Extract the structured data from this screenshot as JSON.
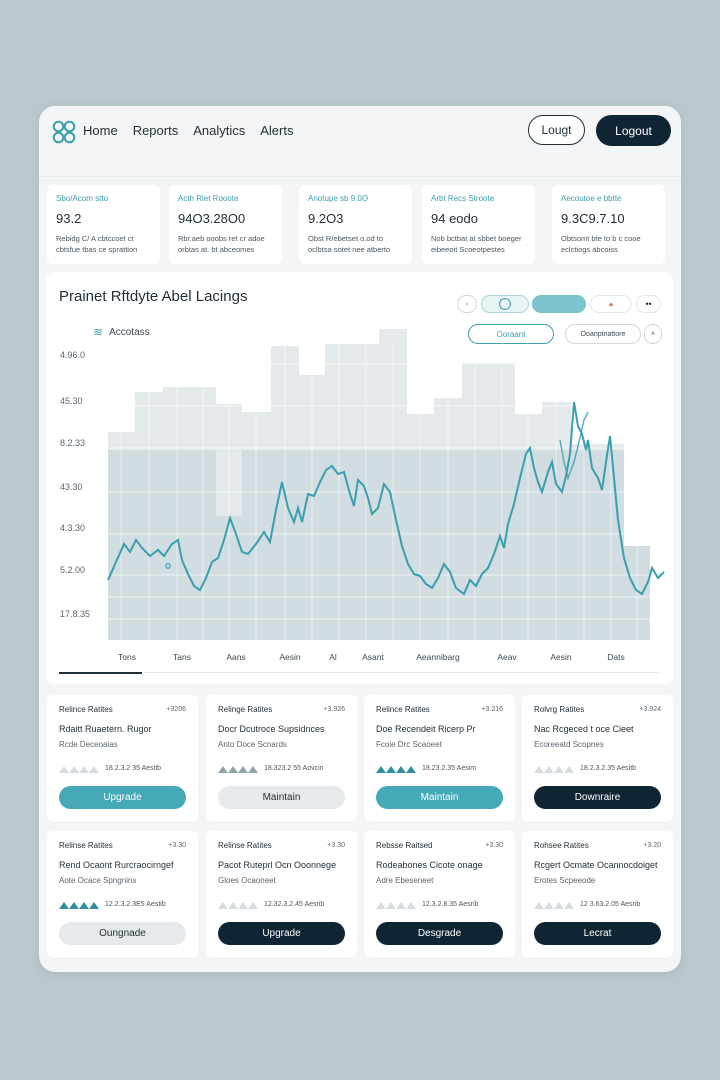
{
  "nav": {
    "items": [
      "Home",
      "Reports",
      "Analytics",
      "Alerts"
    ],
    "logout_outline": "Lougt",
    "logout_primary": "Logout"
  },
  "stats": [
    {
      "label": "Sbo/Acom stto",
      "value": "93.2",
      "desc_line1": "Rebidg C/ A cbtccoet ct",
      "desc_line2": "cbtsfue tbas ce sprattion"
    },
    {
      "label": "Acth Rlet Rooote",
      "value": "94O3.28O0",
      "desc_line1": "Rbr.aeb ooobs ret cr adoe",
      "desc_line2": "orbtas at. bt abceomes"
    },
    {
      "label": "Anotupe sb 9.0O",
      "value": "9.2O3",
      "desc_line1": "Obst R/ebetset o.od to ",
      "desc_line2": "oclbtsa sotet nee atberto"
    },
    {
      "label": "Arbt Recs Stroote",
      "value": "94 eodo",
      "desc_line1": "Nob bctbat at sbbet boeger",
      "desc_line2": "eibeeoit Scoeotpestes"
    },
    {
      "label": "Aecoutoe e bbtte",
      "value": "9.3C9.7.10",
      "desc_line1": "Obtsomt bte to b c cooe",
      "desc_line2": "eclctiogs abcoiss"
    }
  ],
  "chart": {
    "title": "Prainet Rftdyte Abel Lacings",
    "legend_label": "Accotass",
    "controls": {
      "search_placeholder": "Ooraant",
      "dropdown_label": "Ooanptnattore"
    },
    "y_ticks": [
      "4.96.0",
      "45.30",
      "8.2.33",
      "43.30",
      "4.3.30",
      "5.2.00",
      "17.8.35"
    ],
    "x_ticks": [
      "Tons",
      "Tans",
      "Aans",
      "Aesin",
      "Al",
      "Asant",
      "Aeannibarg",
      "Aeav",
      "Aesin",
      "Dats"
    ]
  },
  "cards": [
    {
      "title": "Relince Ratites",
      "code": "+3206",
      "name": "Rdaitt Ruaetern. Rugor",
      "sub": "Rcde Deceoaias",
      "meta": "18.2.3.2 35 Aesitb",
      "button": "Upgrade",
      "style": "teal"
    },
    {
      "title": "Relinge Ratites",
      "code": "+3.926",
      "name": "Docr Dcutroce Supsidnces",
      "sub": "Anto Doce Scnards",
      "meta": "18.323.2 55 Aovcin",
      "button": "Maintain",
      "style": "light"
    },
    {
      "title": "Relince Ratites",
      "code": "+3.216",
      "name": "Doe Recendeit Ricerp Pr",
      "sub": "Fcoie Drc Scaoeet",
      "meta": "18.23.2.35 Aesim",
      "button": "Maintain",
      "style": "teal"
    },
    {
      "title": "Rolvrg Ratites",
      "code": "+3.924",
      "name": "Nac Rcgeced t oce Cieet",
      "sub": "Ecoreeatd Scopnes",
      "meta": "18.2.3.2.35 Aesitb",
      "button": "Downraire",
      "style": "dark"
    },
    {
      "title": "Relinse Ratites",
      "code": "+3.30",
      "name": "Rend Ocaont Rurcraocirngef",
      "sub": "Aote Ocace Spngnins",
      "meta": "12.2.3.2.3E5 Aestib",
      "button": "Oungnade",
      "style": "light"
    },
    {
      "title": "Relinse Ratites",
      "code": "+3.30",
      "name": "Pacot Ruteprl Ocn Ooonnege",
      "sub": "Gloes Ocaoneet",
      "meta": "12.32.3.2.45 Aesrib",
      "button": "Upgrade",
      "style": "dark"
    },
    {
      "title": "Rebsse Raitsed",
      "code": "+3.30",
      "name": "Rodeabones Cicote onage",
      "sub": "Adre Ebeseneet",
      "meta": "12.3.2.8.35 Aesrib",
      "button": "Desgrade",
      "style": "dark"
    },
    {
      "title": "Rohsee Ratites",
      "code": "+3.20",
      "name": "Rcgert Ocmate Ocannocdoiget",
      "sub": "Erotes Scpeeode",
      "meta": "12 3.63.2.05 Aesrib",
      "button": "Lecrat",
      "style": "dark"
    }
  ],
  "colors": {
    "accent": "#45a9b8",
    "dark": "#0f2533",
    "background": "#b9c9cc"
  }
}
